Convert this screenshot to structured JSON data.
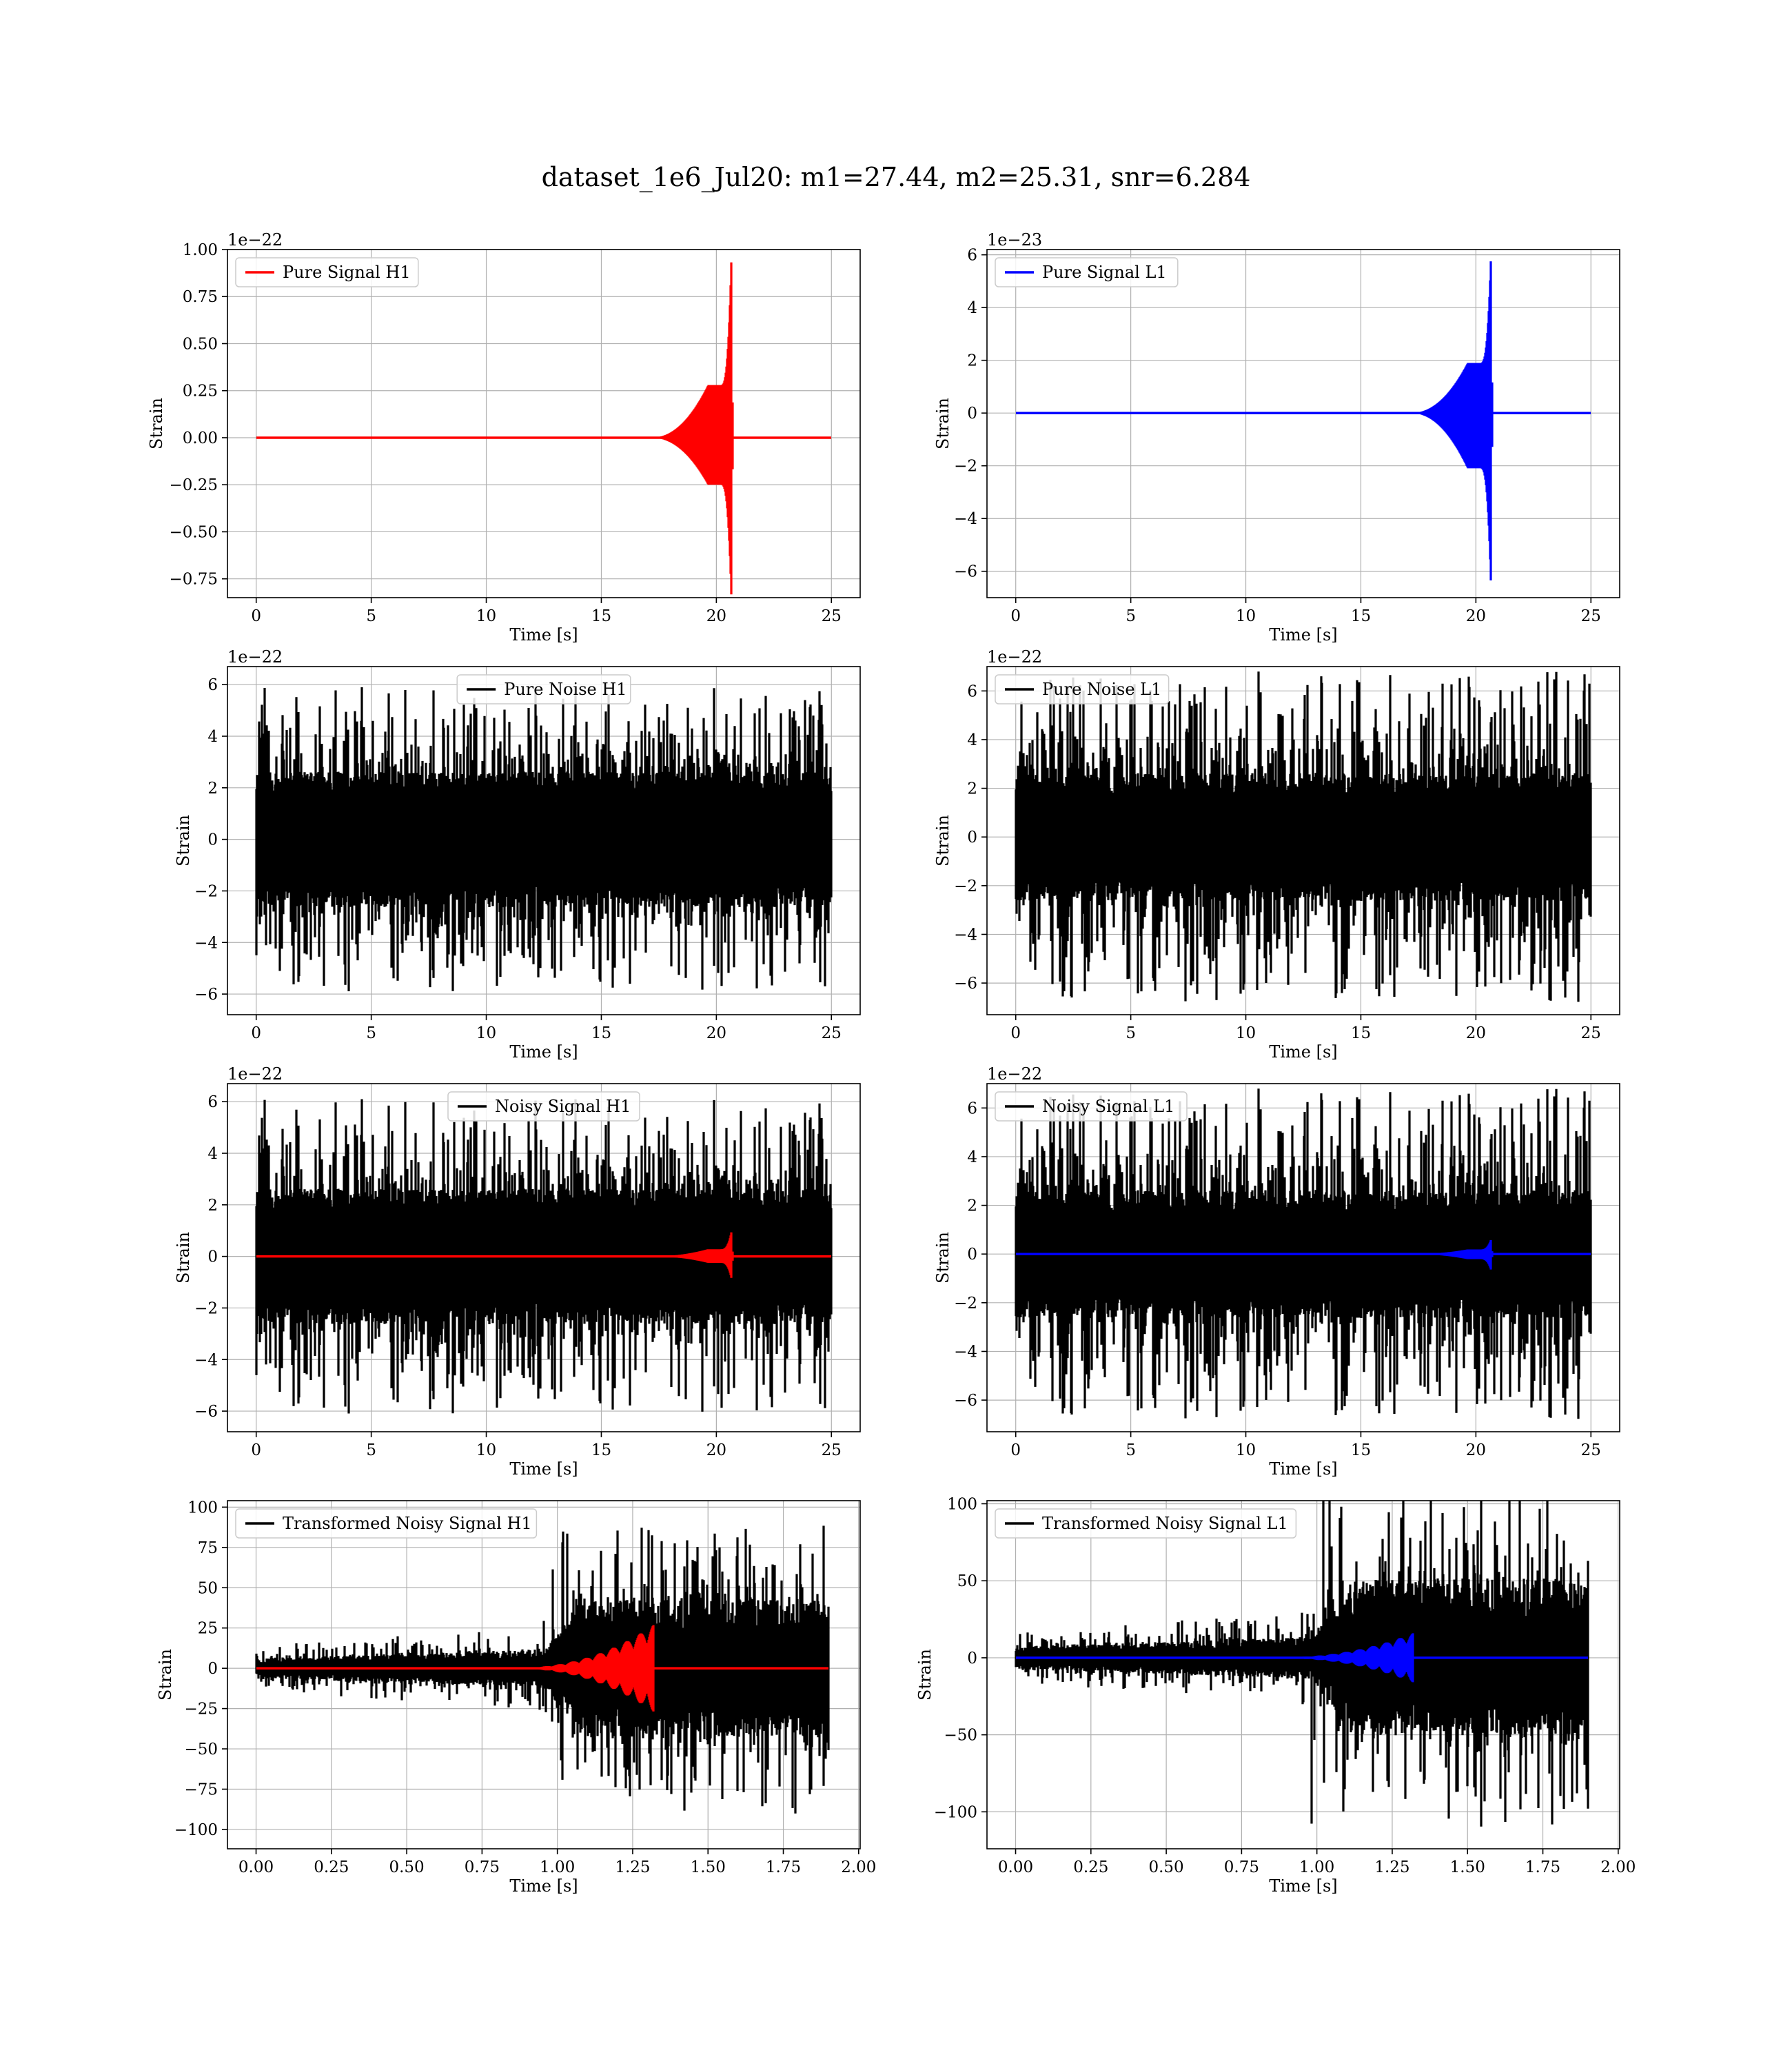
{
  "figure": {
    "title": "dataset_1e6_Jul20: m1=27.44, m2=25.31, snr=6.284"
  },
  "colors": {
    "h1_signal": "#ff0000",
    "l1_signal": "#0000ff",
    "noise": "#000000",
    "grid": "#b0b0b0",
    "frame": "#000000",
    "background": "#ffffff"
  },
  "chart_data": [
    {
      "id": "pure-signal-h1",
      "type": "line",
      "xlabel": "Time [s]",
      "ylabel": "Strain",
      "offset_text": "1e−22",
      "xlim": [
        -1.25,
        26.25
      ],
      "ylim": [
        -0.85,
        1.0
      ],
      "xticks": [
        0,
        5,
        10,
        15,
        20,
        25
      ],
      "xtick_labels": [
        "0",
        "5",
        "10",
        "15",
        "20",
        "25"
      ],
      "yticks": [
        -0.75,
        -0.5,
        -0.25,
        0.0,
        0.25,
        0.5,
        0.75,
        1.0
      ],
      "ytick_labels": [
        "−0.75",
        "−0.50",
        "−0.25",
        "0.00",
        "0.25",
        "0.50",
        "0.75",
        "1.00"
      ],
      "grid": true,
      "legend_position": "upper left",
      "series": [
        {
          "name": "Pure Signal H1",
          "color": "#ff0000",
          "kind": "chirp",
          "t_start": 0,
          "t_end": 25,
          "t_merger": 20.65,
          "peak_pos": 0.94,
          "peak_neg": -0.84,
          "plateau": 0.28
        }
      ]
    },
    {
      "id": "pure-signal-l1",
      "type": "line",
      "xlabel": "Time [s]",
      "ylabel": "Strain",
      "offset_text": "1e−23",
      "xlim": [
        -1.25,
        26.25
      ],
      "ylim": [
        -7.0,
        6.2
      ],
      "xticks": [
        0,
        5,
        10,
        15,
        20,
        25
      ],
      "xtick_labels": [
        "0",
        "5",
        "10",
        "15",
        "20",
        "25"
      ],
      "yticks": [
        -6,
        -4,
        -2,
        0,
        2,
        4,
        6
      ],
      "ytick_labels": [
        "−6",
        "−4",
        "−2",
        "0",
        "2",
        "4",
        "6"
      ],
      "grid": true,
      "legend_position": "upper left",
      "series": [
        {
          "name": "Pure Signal L1",
          "color": "#0000ff",
          "kind": "chirp",
          "t_start": 0,
          "t_end": 25,
          "t_merger": 20.65,
          "peak_pos": 5.8,
          "peak_neg": -6.4,
          "plateau": 1.9
        }
      ]
    },
    {
      "id": "pure-noise-h1",
      "type": "line",
      "xlabel": "Time [s]",
      "ylabel": "Strain",
      "offset_text": "1e−22",
      "xlim": [
        -1.25,
        26.25
      ],
      "ylim": [
        -6.8,
        6.7
      ],
      "xticks": [
        0,
        5,
        10,
        15,
        20,
        25
      ],
      "xtick_labels": [
        "0",
        "5",
        "10",
        "15",
        "20",
        "25"
      ],
      "yticks": [
        -6,
        -4,
        -2,
        0,
        2,
        4,
        6
      ],
      "ytick_labels": [
        "−6",
        "−4",
        "−2",
        "0",
        "2",
        "4",
        "6"
      ],
      "grid": true,
      "legend_position": "upper center",
      "series": [
        {
          "name": "Pure Noise H1",
          "color": "#000000",
          "kind": "noise",
          "t_start": 0,
          "t_end": 25,
          "core": 2.8,
          "spike_max": 5.9,
          "seed": 11
        }
      ]
    },
    {
      "id": "pure-noise-l1",
      "type": "line",
      "xlabel": "Time [s]",
      "ylabel": "Strain",
      "offset_text": "1e−22",
      "xlim": [
        -1.25,
        26.25
      ],
      "ylim": [
        -7.3,
        7.0
      ],
      "xticks": [
        0,
        5,
        10,
        15,
        20,
        25
      ],
      "xtick_labels": [
        "0",
        "5",
        "10",
        "15",
        "20",
        "25"
      ],
      "yticks": [
        -6,
        -4,
        -2,
        0,
        2,
        4,
        6
      ],
      "ytick_labels": [
        "−6",
        "−4",
        "−2",
        "0",
        "2",
        "4",
        "6"
      ],
      "grid": true,
      "legend_position": "upper left",
      "series": [
        {
          "name": "Pure Noise L1",
          "color": "#000000",
          "kind": "noise",
          "t_start": 0,
          "t_end": 25,
          "core": 2.8,
          "spike_max": 6.8,
          "seed": 29
        }
      ]
    },
    {
      "id": "noisy-signal-h1",
      "type": "line",
      "xlabel": "Time [s]",
      "ylabel": "Strain",
      "offset_text": "1e−22",
      "xlim": [
        -1.25,
        26.25
      ],
      "ylim": [
        -6.8,
        6.7
      ],
      "xticks": [
        0,
        5,
        10,
        15,
        20,
        25
      ],
      "xtick_labels": [
        "0",
        "5",
        "10",
        "15",
        "20",
        "25"
      ],
      "yticks": [
        -6,
        -4,
        -2,
        0,
        2,
        4,
        6
      ],
      "ytick_labels": [
        "−6",
        "−4",
        "−2",
        "0",
        "2",
        "4",
        "6"
      ],
      "grid": true,
      "legend_position": "upper center",
      "series": [
        {
          "name": "Noisy Signal H1",
          "color": "#000000",
          "kind": "noise",
          "t_start": 0,
          "t_end": 25,
          "core": 2.8,
          "spike_max": 6.1,
          "seed": 11
        },
        {
          "color": "#ff0000",
          "kind": "chirp",
          "t_start": 0,
          "t_end": 25,
          "t_merger": 20.65,
          "peak_pos": 0.94,
          "peak_neg": -0.84,
          "plateau": 0.28
        }
      ]
    },
    {
      "id": "noisy-signal-l1",
      "type": "line",
      "xlabel": "Time [s]",
      "ylabel": "Strain",
      "offset_text": "1e−22",
      "xlim": [
        -1.25,
        26.25
      ],
      "ylim": [
        -7.3,
        7.0
      ],
      "xticks": [
        0,
        5,
        10,
        15,
        20,
        25
      ],
      "xtick_labels": [
        "0",
        "5",
        "10",
        "15",
        "20",
        "25"
      ],
      "yticks": [
        -6,
        -4,
        -2,
        0,
        2,
        4,
        6
      ],
      "ytick_labels": [
        "−6",
        "−4",
        "−2",
        "0",
        "2",
        "4",
        "6"
      ],
      "grid": true,
      "legend_position": "upper left",
      "series": [
        {
          "name": "Noisy Signal L1",
          "color": "#000000",
          "kind": "noise",
          "t_start": 0,
          "t_end": 25,
          "core": 2.8,
          "spike_max": 6.8,
          "seed": 29
        },
        {
          "color": "#0000ff",
          "kind": "chirp",
          "t_start": 0,
          "t_end": 25,
          "t_merger": 20.65,
          "peak_pos": 0.58,
          "peak_neg": -0.64,
          "plateau": 0.19
        }
      ]
    },
    {
      "id": "transformed-noisy-signal-h1",
      "type": "line",
      "xlabel": "Time [s]",
      "ylabel": "Strain",
      "offset_text": "",
      "xlim": [
        -0.095,
        2.005
      ],
      "ylim": [
        -112,
        104
      ],
      "xticks": [
        0,
        0.25,
        0.5,
        0.75,
        1.0,
        1.25,
        1.5,
        1.75,
        2.0
      ],
      "xtick_labels": [
        "0.00",
        "0.25",
        "0.50",
        "0.75",
        "1.00",
        "1.25",
        "1.50",
        "1.75",
        "2.00"
      ],
      "yticks": [
        -100,
        -75,
        -50,
        -25,
        0,
        25,
        50,
        75,
        100
      ],
      "ytick_labels": [
        "−100",
        "−75",
        "−50",
        "−25",
        "0",
        "25",
        "50",
        "75",
        "100"
      ],
      "grid": true,
      "legend_position": "upper left",
      "series": [
        {
          "name": "Transformed Noisy Signal H1",
          "color": "#000000",
          "kind": "whitened",
          "t_start": 0,
          "t_end": 1.9,
          "early": 6,
          "late": 42,
          "rise_start": 0.95,
          "rise_end": 1.1,
          "spike_max": 92,
          "seed": 53
        },
        {
          "color": "#ff0000",
          "kind": "whitened-chirp",
          "t_start": 0,
          "t_end": 1.9,
          "t_merger": 1.32,
          "peak": 27,
          "cycle": 0.045
        }
      ]
    },
    {
      "id": "transformed-noisy-signal-l1",
      "type": "line",
      "xlabel": "Time [s]",
      "ylabel": "Strain",
      "offset_text": "",
      "xlim": [
        -0.095,
        2.005
      ],
      "ylim": [
        -124,
        102
      ],
      "xticks": [
        0,
        0.25,
        0.5,
        0.75,
        1.0,
        1.25,
        1.5,
        1.75,
        2.0
      ],
      "xtick_labels": [
        "0.00",
        "0.25",
        "0.50",
        "0.75",
        "1.00",
        "1.25",
        "1.50",
        "1.75",
        "2.00"
      ],
      "yticks": [
        -100,
        -50,
        0,
        50,
        100
      ],
      "ytick_labels": [
        "−100",
        "−50",
        "0",
        "50",
        "100"
      ],
      "grid": true,
      "legend_position": "upper left",
      "series": [
        {
          "name": "Transformed Noisy Signal L1",
          "color": "#000000",
          "kind": "whitened",
          "t_start": 0,
          "t_end": 1.9,
          "early": 7,
          "late": 50,
          "rise_start": 0.98,
          "rise_end": 1.12,
          "spike_max": 110,
          "seed": 71
        },
        {
          "color": "#0000ff",
          "kind": "whitened-chirp",
          "t_start": 0,
          "t_end": 1.9,
          "t_merger": 1.32,
          "peak": 16,
          "cycle": 0.045
        }
      ]
    }
  ]
}
